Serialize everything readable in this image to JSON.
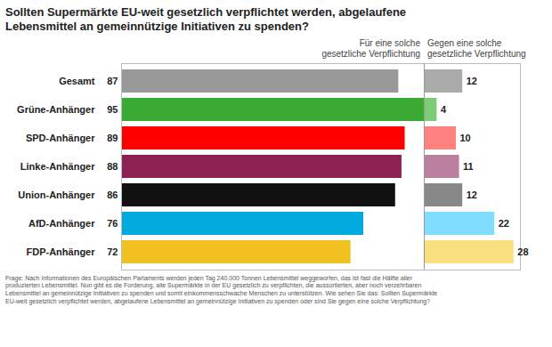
{
  "chart_data": {
    "type": "bar",
    "orientation": "horizontal",
    "title": "Sollten Supermärkte EU-weit gesetzlich verpflichtet werden, abgelaufene\nLebensmittel an gemeinnützige Initiativen zu spenden?",
    "categories": [
      "Gesamt",
      "Grüne-Anhänger",
      "SPD-Anhänger",
      "Linke-Anhänger",
      "Union-Anhänger",
      "AfD-Anhänger",
      "FDP-Anhänger"
    ],
    "series": [
      {
        "name": "Für eine solche\ngesetzliche Verpflichtung",
        "colors": [
          "#999999",
          "#3aaa35",
          "#ff0000",
          "#8b2252",
          "#111111",
          "#00aadd",
          "#f0c020"
        ],
        "values": [
          87,
          95,
          89,
          88,
          86,
          76,
          72
        ]
      },
      {
        "name": "Gegen eine solche\ngesetzliche Verpflichtung",
        "colors": [
          "#aaaaaa",
          "#7acc77",
          "#ff8080",
          "#bb80a0",
          "#888888",
          "#80ddff",
          "#f8e080"
        ],
        "values": [
          12,
          4,
          10,
          11,
          12,
          22,
          28
        ],
        "axis": "x2"
      }
    ],
    "xlim": [
      0,
      95
    ],
    "x2lim": [
      0,
      30
    ],
    "data_labels": true,
    "tick_labels": "y",
    "grid": false,
    "caption": "Frage: Nach Informationen des Europäischen Parlaments werden jeden Tag 240.000 Tonnen Lebensmittel weggeworfen, das ist fast die Hälfte aller\nproduzierten Lebensmittel. Nun gibt es die Forderung, alle Supermärkte in der EU gesetzlich zu verpflichten, die aussortierten, aber noch verzehrbaren\nLebensmittel an gemeinnützige Initiativen zu spenden und somit einkommensschwache Menschen zu unterstützen. Wie sehen Sie das: Sollten Supermärkte\nEU-weit gesetzlich verpflichtet werden, abgelaufene Lebensmittel an gemeinnützige Initiativen zu spenden oder sind Sie gegen eine solche Verpflichtung?"
  }
}
